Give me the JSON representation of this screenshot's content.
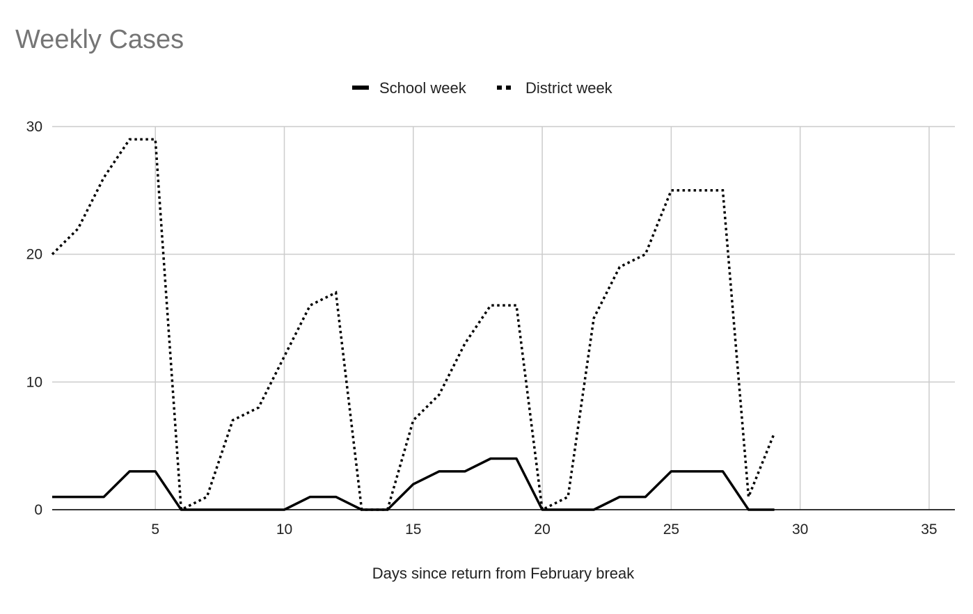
{
  "chart_data": {
    "type": "line",
    "title": "Weekly Cases",
    "xlabel": "Days since return from February break",
    "ylabel": "",
    "xlim": [
      1,
      36
    ],
    "ylim": [
      0,
      30
    ],
    "xticks": [
      5,
      10,
      15,
      20,
      25,
      30,
      35
    ],
    "yticks": [
      0,
      10,
      20,
      30
    ],
    "grid": true,
    "legend_position": "top-center",
    "x": [
      1,
      2,
      3,
      4,
      5,
      6,
      7,
      8,
      9,
      10,
      11,
      12,
      13,
      14,
      15,
      16,
      17,
      18,
      19,
      20,
      21,
      22,
      23,
      24,
      25,
      26,
      27,
      28,
      29
    ],
    "series": [
      {
        "name": "School week",
        "style": "solid",
        "color": "#000000",
        "values": [
          1,
          1,
          1,
          3,
          3,
          0,
          0,
          0,
          0,
          0,
          1,
          1,
          0,
          0,
          2,
          3,
          3,
          4,
          4,
          0,
          0,
          0,
          1,
          1,
          3,
          3,
          3,
          0,
          0
        ]
      },
      {
        "name": "District week",
        "style": "dotted",
        "color": "#000000",
        "values": [
          20,
          22,
          26,
          29,
          29,
          0,
          1,
          7,
          8,
          12,
          16,
          17,
          0,
          0,
          7,
          9,
          13,
          16,
          16,
          0,
          1,
          15,
          19,
          20,
          25,
          25,
          25,
          1,
          6
        ]
      }
    ]
  }
}
